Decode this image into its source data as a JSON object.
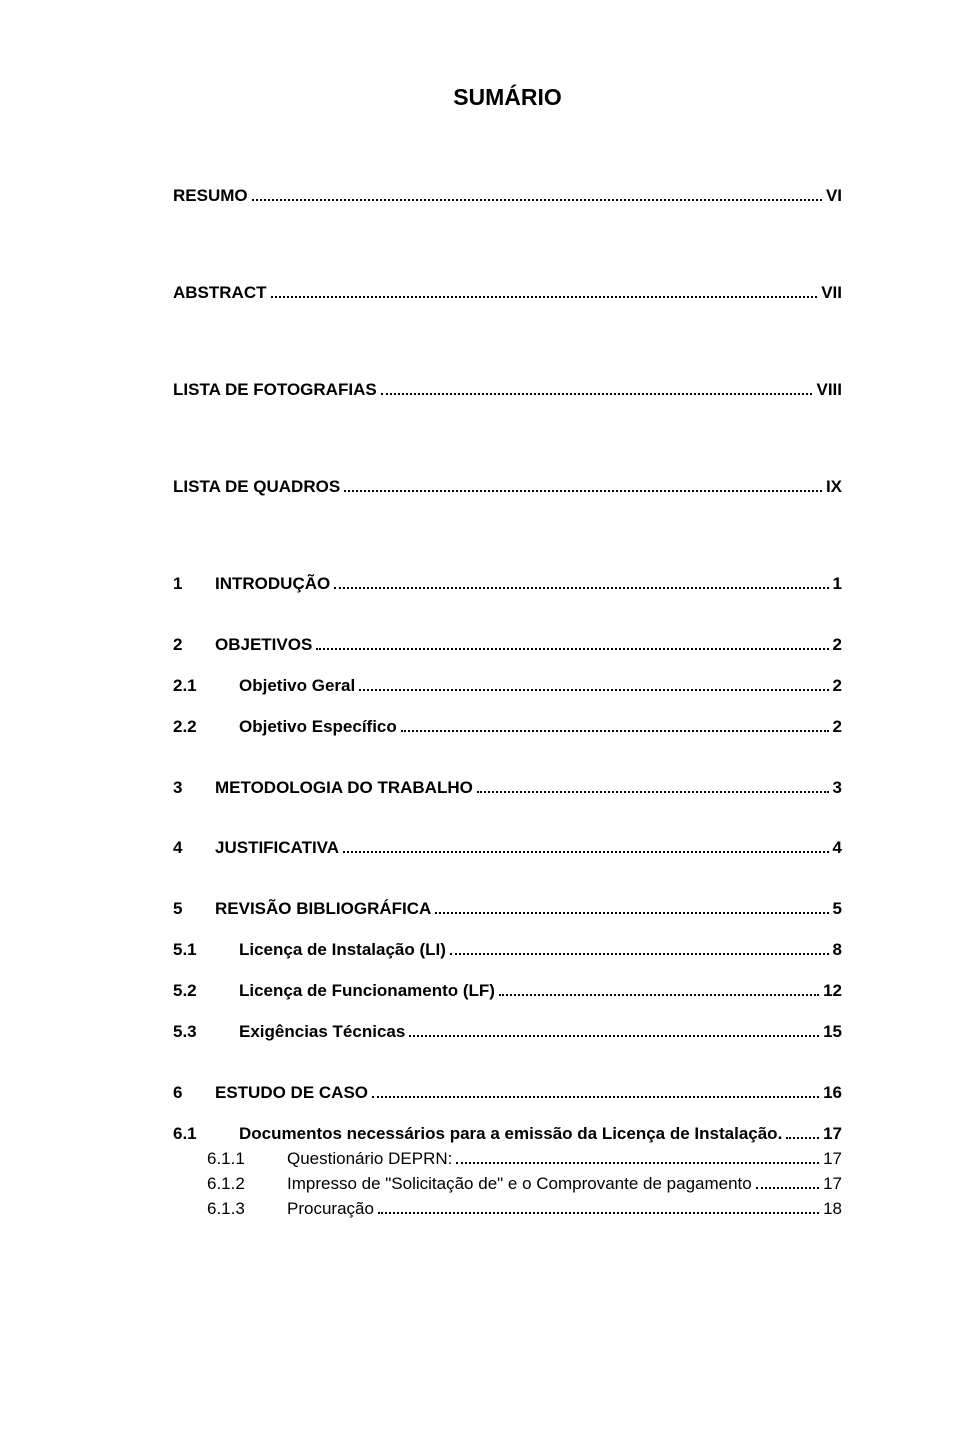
{
  "title": "SUMÁRIO",
  "style": {
    "page_bg": "#ffffff",
    "text_color": "#000000",
    "font_family": "Arial",
    "title_fontsize_pt": 17,
    "body_fontsize_pt": 13,
    "leader_char": "."
  },
  "entries": [
    {
      "label": "RESUMO",
      "page": "VI",
      "bold": true,
      "gap_after": "xl"
    },
    {
      "label": "ABSTRACT",
      "page": "VII",
      "bold": true,
      "gap_after": "xl"
    },
    {
      "label": "LISTA DE FOTOGRAFIAS",
      "page": "VIII",
      "bold": true,
      "gap_after": "xl"
    },
    {
      "label": "LISTA DE QUADROS",
      "page": "IX",
      "bold": true,
      "gap_after": "xl"
    },
    {
      "num": "1",
      "label": "INTRODUÇÃO",
      "page": "1",
      "bold": true,
      "num_class": "num",
      "gap_after": "l"
    },
    {
      "num": "2",
      "label": "OBJETIVOS",
      "page": "2",
      "bold": true,
      "num_class": "num",
      "gap_after": "m"
    },
    {
      "num": "2.1",
      "label": "Objetivo Geral",
      "page": "2",
      "bold": true,
      "num_class": "num-w",
      "gap_after": "m"
    },
    {
      "num": "2.2",
      "label": "Objetivo Específico",
      "page": "2",
      "bold": true,
      "num_class": "num-w",
      "gap_after": "l"
    },
    {
      "num": "3",
      "label": "METODOLOGIA DO TRABALHO",
      "page": "3",
      "bold": true,
      "num_class": "num",
      "gap_after": "l"
    },
    {
      "num": "4",
      "label": "JUSTIFICATIVA",
      "page": "4",
      "bold": true,
      "num_class": "num",
      "gap_after": "l"
    },
    {
      "num": "5",
      "label": "REVISÃO BIBLIOGRÁFICA",
      "page": "5",
      "bold": true,
      "num_class": "num",
      "gap_after": "m"
    },
    {
      "num": "5.1",
      "label": "Licença de Instalação (LI)",
      "page": "8",
      "bold": true,
      "num_class": "num-w",
      "gap_after": "m"
    },
    {
      "num": "5.2",
      "label": "Licença de Funcionamento (LF)",
      "page": "12",
      "bold": true,
      "num_class": "num-w",
      "gap_after": "m"
    },
    {
      "num": "5.3",
      "label": "Exigências Técnicas",
      "page": "15",
      "bold": true,
      "num_class": "num-w",
      "gap_after": "l"
    },
    {
      "num": "6",
      "label": "ESTUDO DE CASO",
      "page": "16",
      "bold": true,
      "num_class": "num",
      "gap_after": "m"
    },
    {
      "num": "6.1",
      "label": "Documentos necessários para a emissão da Licença de Instalação.",
      "page": "17",
      "bold": true,
      "num_class": "num-w",
      "gap_after": "s"
    },
    {
      "num": "6.1.1",
      "label": "Questionário DEPRN:",
      "page": "17",
      "bold": false,
      "num_class": "num-ww",
      "indent": 1,
      "gap_after": "s"
    },
    {
      "num": "6.1.2",
      "label": "Impresso de \"Solicitação de\" e o Comprovante de pagamento",
      "page": "17",
      "bold": false,
      "num_class": "num-ww",
      "indent": 1,
      "gap_after": "s"
    },
    {
      "num": "6.1.3",
      "label": "Procuração",
      "page": "18",
      "bold": false,
      "num_class": "num-ww",
      "indent": 1,
      "gap_after": "s"
    }
  ]
}
